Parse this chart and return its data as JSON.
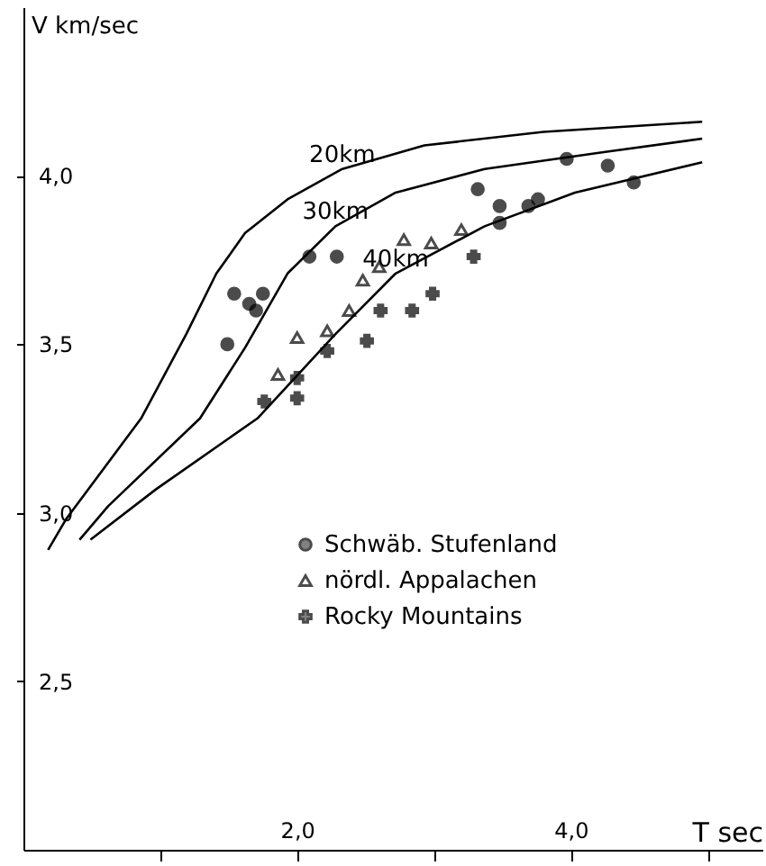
{
  "chart_data": {
    "type": "line",
    "xlabel": "T sec",
    "ylabel": "V km/sec",
    "xlim": [
      0,
      5.4
    ],
    "ylim": [
      2.0,
      4.5
    ],
    "xticks": [
      {
        "value": 1,
        "label": null
      },
      {
        "value": 2,
        "label": "2,0"
      },
      {
        "value": 3,
        "label": null
      },
      {
        "value": 4,
        "label": "4,0"
      },
      {
        "value": 5,
        "label": null
      }
    ],
    "yticks": [
      {
        "value": 2.5,
        "label": "2,5"
      },
      {
        "value": 3.0,
        "label": "3,0"
      },
      {
        "value": 3.5,
        "label": "3,5"
      },
      {
        "value": 4.0,
        "label": "4,0"
      }
    ],
    "grid": false,
    "legend": "center left",
    "annotations": [
      {
        "text": "20km",
        "x": 2.33,
        "y": 4.02
      },
      {
        "text": "30km",
        "x": 2.28,
        "y": 3.85
      },
      {
        "text": "40km",
        "x": 2.72,
        "y": 3.71
      }
    ],
    "series": [
      {
        "color": "#000000",
        "marker": "none",
        "x": [
          0.18,
          0.31,
          0.86,
          1.19,
          1.41,
          1.62,
          1.93,
          2.33,
          2.93,
          3.8,
          4.96
        ],
        "values": [
          2.89,
          2.98,
          3.28,
          3.53,
          3.71,
          3.83,
          3.93,
          4.02,
          4.09,
          4.13,
          4.16
        ]
      },
      {
        "color": "#000000",
        "marker": "none",
        "x": [
          0.41,
          0.62,
          1.29,
          1.62,
          1.93,
          2.28,
          2.72,
          3.37,
          4.24,
          4.96
        ],
        "values": [
          2.92,
          3.02,
          3.28,
          3.49,
          3.71,
          3.85,
          3.95,
          4.02,
          4.07,
          4.11
        ]
      },
      {
        "color": "#000000",
        "marker": "none",
        "x": [
          0.49,
          0.97,
          1.71,
          2.28,
          2.72,
          3.37,
          4.03,
          4.96
        ],
        "values": [
          2.92,
          3.07,
          3.28,
          3.53,
          3.71,
          3.85,
          3.95,
          4.04
        ]
      },
      {
        "type": "scatter",
        "name": "Schwäb. Stufenland",
        "color": "#000000",
        "marker": "circle",
        "x": [
          1.49,
          1.54,
          1.65,
          1.7,
          1.75,
          2.09,
          2.29,
          3.32,
          3.48,
          3.48,
          3.69,
          3.76,
          3.97,
          4.27,
          4.46
        ],
        "values": [
          3.5,
          3.65,
          3.62,
          3.6,
          3.65,
          3.76,
          3.76,
          3.96,
          3.91,
          3.86,
          3.91,
          3.93,
          4.05,
          4.03,
          3.98
        ]
      },
      {
        "type": "scatter",
        "name": "nördl. Appalachen",
        "color": "#000000",
        "marker": "triangle",
        "x": [
          1.86,
          2.0,
          2.22,
          2.38,
          2.48,
          2.6,
          2.78,
          2.98,
          3.2
        ],
        "values": [
          3.41,
          3.52,
          3.54,
          3.6,
          3.69,
          3.73,
          3.81,
          3.8,
          3.84
        ]
      },
      {
        "type": "scatter",
        "name": "Rocky Mountains",
        "color": "#000000",
        "marker": "cross",
        "x": [
          1.76,
          2.0,
          2.0,
          2.22,
          2.51,
          2.61,
          2.84,
          2.99,
          3.29
        ],
        "values": [
          3.33,
          3.34,
          3.4,
          3.48,
          3.51,
          3.6,
          3.6,
          3.65,
          3.76
        ]
      }
    ]
  }
}
